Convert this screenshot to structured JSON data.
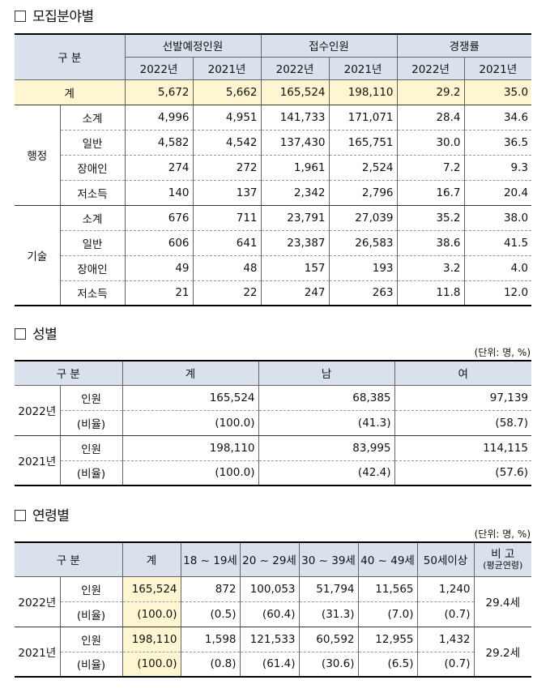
{
  "sections": {
    "field": "모집분야별",
    "gender": "성별",
    "age": "연령별"
  },
  "units": {
    "gender": "(단위: 명, %)",
    "age": "(단위: 명, %)"
  },
  "table1": {
    "headers": {
      "category": "구 분",
      "planned": "선발예정인원",
      "received": "접수인원",
      "ratio": "경쟁률",
      "years": [
        "2022년",
        "2021년",
        "2022년",
        "2021년",
        "2022년",
        "2021년"
      ]
    },
    "total": {
      "label": "계",
      "values": [
        "5,672",
        "5,662",
        "165,524",
        "198,110",
        "29.2",
        "35.0"
      ]
    },
    "groups": [
      {
        "name": "행정",
        "rows": [
          {
            "label": "소계",
            "values": [
              "4,996",
              "4,951",
              "141,733",
              "171,071",
              "28.4",
              "34.6"
            ]
          },
          {
            "label": "일반",
            "values": [
              "4,582",
              "4,542",
              "137,430",
              "165,751",
              "30.0",
              "36.5"
            ]
          },
          {
            "label": "장애인",
            "values": [
              "274",
              "272",
              "1,961",
              "2,524",
              "7.2",
              "9.3"
            ]
          },
          {
            "label": "저소득",
            "values": [
              "140",
              "137",
              "2,342",
              "2,796",
              "16.7",
              "20.4"
            ]
          }
        ]
      },
      {
        "name": "기술",
        "rows": [
          {
            "label": "소계",
            "values": [
              "676",
              "711",
              "23,791",
              "27,039",
              "35.2",
              "38.0"
            ]
          },
          {
            "label": "일반",
            "values": [
              "606",
              "641",
              "23,387",
              "26,583",
              "38.6",
              "41.5"
            ]
          },
          {
            "label": "장애인",
            "values": [
              "49",
              "48",
              "157",
              "193",
              "3.2",
              "4.0"
            ]
          },
          {
            "label": "저소득",
            "values": [
              "21",
              "22",
              "247",
              "263",
              "11.8",
              "12.0"
            ]
          }
        ]
      }
    ]
  },
  "table2": {
    "headers": {
      "category": "구 분",
      "total": "계",
      "male": "남",
      "female": "여"
    },
    "groups": [
      {
        "year": "2022년",
        "rows": [
          {
            "label": "인원",
            "values": [
              "165,524",
              "68,385",
              "97,139"
            ]
          },
          {
            "label": "(비율)",
            "values": [
              "(100.0)",
              "(41.3)",
              "(58.7)"
            ]
          }
        ]
      },
      {
        "year": "2021년",
        "rows": [
          {
            "label": "인원",
            "values": [
              "198,110",
              "83,995",
              "114,115"
            ]
          },
          {
            "label": "(비율)",
            "values": [
              "(100.0)",
              "(42.4)",
              "(57.6)"
            ]
          }
        ]
      }
    ]
  },
  "table3": {
    "headers": {
      "category": "구 분",
      "total": "계",
      "ages": [
        "18 ~ 19세",
        "20 ~ 29세",
        "30 ~ 39세",
        "40 ~ 49세",
        "50세이상"
      ],
      "note": "비 고",
      "note_sub": "(평균연령)"
    },
    "groups": [
      {
        "year": "2022년",
        "note": "29.4세",
        "rows": [
          {
            "label": "인원",
            "values": [
              "165,524",
              "872",
              "100,053",
              "51,794",
              "11,565",
              "1,240"
            ]
          },
          {
            "label": "(비율)",
            "values": [
              "(100.0)",
              "(0.5)",
              "(60.4)",
              "(31.3)",
              "(7.0)",
              "(0.7)"
            ]
          }
        ]
      },
      {
        "year": "2021년",
        "note": "29.2세",
        "rows": [
          {
            "label": "인원",
            "values": [
              "198,110",
              "1,598",
              "121,533",
              "60,592",
              "12,955",
              "1,432"
            ]
          },
          {
            "label": "(비율)",
            "values": [
              "(100.0)",
              "(0.8)",
              "(61.4)",
              "(30.6)",
              "(6.5)",
              "(0.7)"
            ]
          }
        ]
      }
    ]
  }
}
